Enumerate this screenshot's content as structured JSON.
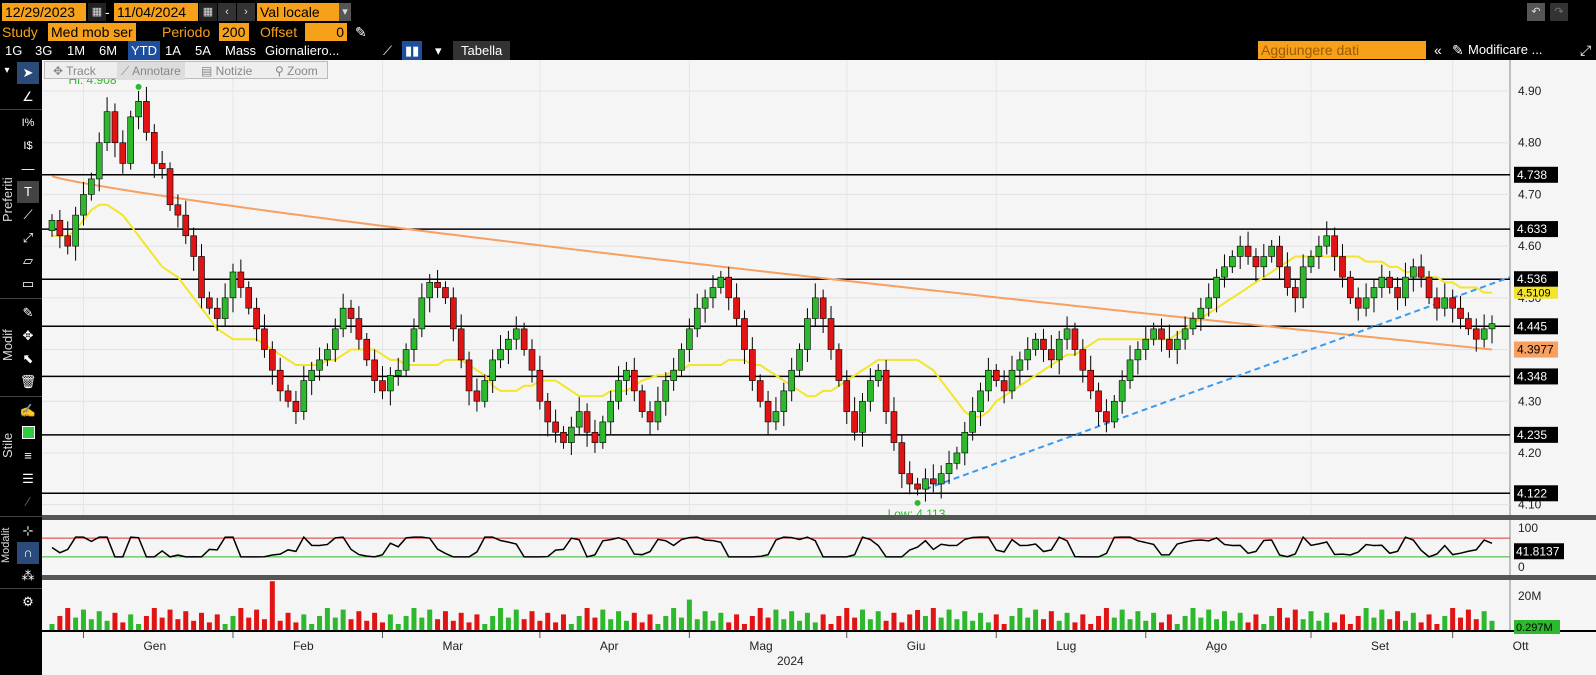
{
  "header": {
    "start_date": "12/29/2023",
    "dash": "-",
    "end_date": "11/04/2024",
    "currency": "Val locale",
    "study_label": "Study",
    "study_value": "Med mob ser",
    "period_label": "Periodo",
    "period_value": "200",
    "offset_label": "Offset",
    "offset_value": "0",
    "add_data_placeholder": "Aggiungere dati",
    "modify_label": "Modificare ..."
  },
  "range_tabs": [
    "1G",
    "3G",
    "1M",
    "6M",
    "YTD",
    "1A",
    "5A",
    "Mass",
    "Giornaliero..."
  ],
  "active_range": "YTD",
  "table_button": "Tabella",
  "chart_tools": [
    "Track",
    "Annotare",
    "Notizie",
    "Zoom"
  ],
  "side_labels": {
    "preferiti": "Preferiti",
    "modif": "Modif",
    "stile": "Stile",
    "modalit": "Modalit"
  },
  "chart_data": {
    "type": "candlestick",
    "xlabel": "2024",
    "x_ticks": [
      "Gen",
      "Feb",
      "Mar",
      "Apr",
      "Mag",
      "Giu",
      "Lug",
      "Ago",
      "Set",
      "Ott"
    ],
    "y_ticks": [
      4.1,
      4.2,
      4.3,
      4.4,
      4.5,
      4.6,
      4.7,
      4.8,
      4.9
    ],
    "ylim": [
      4.08,
      4.96
    ],
    "hi_label": "Hi: 4.908",
    "low_label": "Low: 4.113",
    "hi_value": 4.908,
    "low_value": 4.113,
    "horizontal_levels": [
      4.738,
      4.633,
      4.536,
      4.445,
      4.348,
      4.235,
      4.122
    ],
    "level_labels": [
      "4.738",
      "4.633",
      "4.536",
      "4.445",
      "4.348",
      "4.235",
      "4.122"
    ],
    "ma_long_last": "4.3977",
    "ma_short_last": "4.5109",
    "closes": [
      4.65,
      4.62,
      4.6,
      4.66,
      4.7,
      4.73,
      4.8,
      4.86,
      4.8,
      4.76,
      4.85,
      4.88,
      4.82,
      4.76,
      4.75,
      4.68,
      4.66,
      4.62,
      4.58,
      4.5,
      4.48,
      4.46,
      4.5,
      4.55,
      4.52,
      4.48,
      4.44,
      4.4,
      4.36,
      4.32,
      4.3,
      4.28,
      4.34,
      4.36,
      4.38,
      4.4,
      4.44,
      4.48,
      4.46,
      4.42,
      4.38,
      4.34,
      4.32,
      4.35,
      4.36,
      4.4,
      4.44,
      4.5,
      4.53,
      4.52,
      4.5,
      4.44,
      4.38,
      4.32,
      4.3,
      4.34,
      4.38,
      4.4,
      4.42,
      4.44,
      4.4,
      4.36,
      4.3,
      4.26,
      4.24,
      4.22,
      4.25,
      4.28,
      4.24,
      4.22,
      4.26,
      4.3,
      4.34,
      4.36,
      4.32,
      4.28,
      4.26,
      4.3,
      4.34,
      4.36,
      4.4,
      4.44,
      4.48,
      4.5,
      4.52,
      4.54,
      4.5,
      4.46,
      4.4,
      4.34,
      4.3,
      4.26,
      4.28,
      4.32,
      4.36,
      4.4,
      4.46,
      4.5,
      4.46,
      4.4,
      4.34,
      4.28,
      4.24,
      4.3,
      4.34,
      4.36,
      4.28,
      4.22,
      4.16,
      4.14,
      4.13,
      4.15,
      4.14,
      4.16,
      4.18,
      4.2,
      4.24,
      4.28,
      4.32,
      4.36,
      4.34,
      4.32,
      4.36,
      4.38,
      4.4,
      4.42,
      4.4,
      4.38,
      4.42,
      4.44,
      4.4,
      4.36,
      4.32,
      4.28,
      4.26,
      4.3,
      4.34,
      4.38,
      4.4,
      4.42,
      4.44,
      4.42,
      4.4,
      4.42,
      4.44,
      4.46,
      4.48,
      4.5,
      4.54,
      4.56,
      4.58,
      4.6,
      4.58,
      4.56,
      4.58,
      4.6,
      4.56,
      4.52,
      4.5,
      4.56,
      4.58,
      4.6,
      4.62,
      4.58,
      4.54,
      4.5,
      4.48,
      4.5,
      4.52,
      4.54,
      4.52,
      4.5,
      4.54,
      4.56,
      4.54,
      4.5,
      4.48,
      4.5,
      4.48,
      4.46,
      4.44,
      4.42,
      4.44,
      4.45
    ],
    "ma_short": [
      4.62,
      4.62,
      4.62,
      4.63,
      4.65,
      4.67,
      4.68,
      4.68,
      4.67,
      4.66,
      4.64,
      4.62,
      4.6,
      4.58,
      4.56,
      4.54,
      4.52,
      4.5,
      4.48,
      4.46,
      4.44,
      4.43,
      4.42,
      4.42,
      4.42,
      4.42,
      4.41,
      4.4,
      4.39,
      4.38,
      4.37,
      4.37,
      4.37,
      4.37,
      4.38,
      4.38,
      4.39,
      4.4,
      4.4,
      4.4,
      4.4,
      4.39,
      4.38,
      4.38,
      4.37,
      4.37,
      4.37,
      4.37,
      4.38,
      4.38,
      4.38,
      4.37,
      4.36,
      4.35,
      4.33,
      4.32,
      4.32,
      4.32,
      4.33,
      4.33,
      4.34,
      4.34,
      4.34,
      4.33,
      4.32,
      4.31,
      4.31,
      4.31,
      4.31,
      4.32,
      4.32,
      4.32,
      4.33,
      4.34,
      4.35,
      4.35,
      4.36,
      4.36,
      4.37,
      4.37,
      4.37,
      4.37,
      4.37,
      4.38,
      4.38,
      4.38,
      4.37,
      4.37,
      4.36,
      4.35,
      4.34,
      4.33,
      4.32,
      4.31,
      4.31,
      4.32,
      4.32,
      4.33,
      4.34,
      4.35,
      4.36,
      4.37,
      4.38,
      4.38,
      4.38,
      4.38,
      4.38,
      4.37,
      4.36,
      4.34,
      4.32,
      4.3,
      4.28,
      4.27,
      4.27,
      4.28,
      4.3,
      4.31,
      4.32,
      4.33,
      4.34,
      4.35,
      4.36,
      4.37,
      4.38,
      4.39,
      4.39,
      4.4,
      4.41,
      4.42,
      4.42,
      4.42,
      4.42,
      4.42,
      4.42,
      4.42,
      4.42,
      4.42,
      4.43,
      4.44,
      4.45,
      4.46,
      4.47,
      4.48,
      4.49,
      4.5,
      4.51,
      4.52,
      4.53,
      4.54,
      4.55,
      4.56,
      4.57,
      4.58,
      4.58,
      4.58,
      4.58,
      4.58,
      4.58,
      4.58,
      4.58,
      4.58,
      4.57,
      4.57,
      4.56,
      4.56,
      4.55,
      4.55,
      4.54,
      4.54,
      4.54,
      4.53,
      4.53,
      4.52,
      4.52,
      4.52,
      4.51,
      4.51
    ],
    "osc_label": "41.8137",
    "osc_ticks": [
      "100",
      "0"
    ],
    "vol_labels": [
      "20M",
      "0.297M"
    ]
  }
}
